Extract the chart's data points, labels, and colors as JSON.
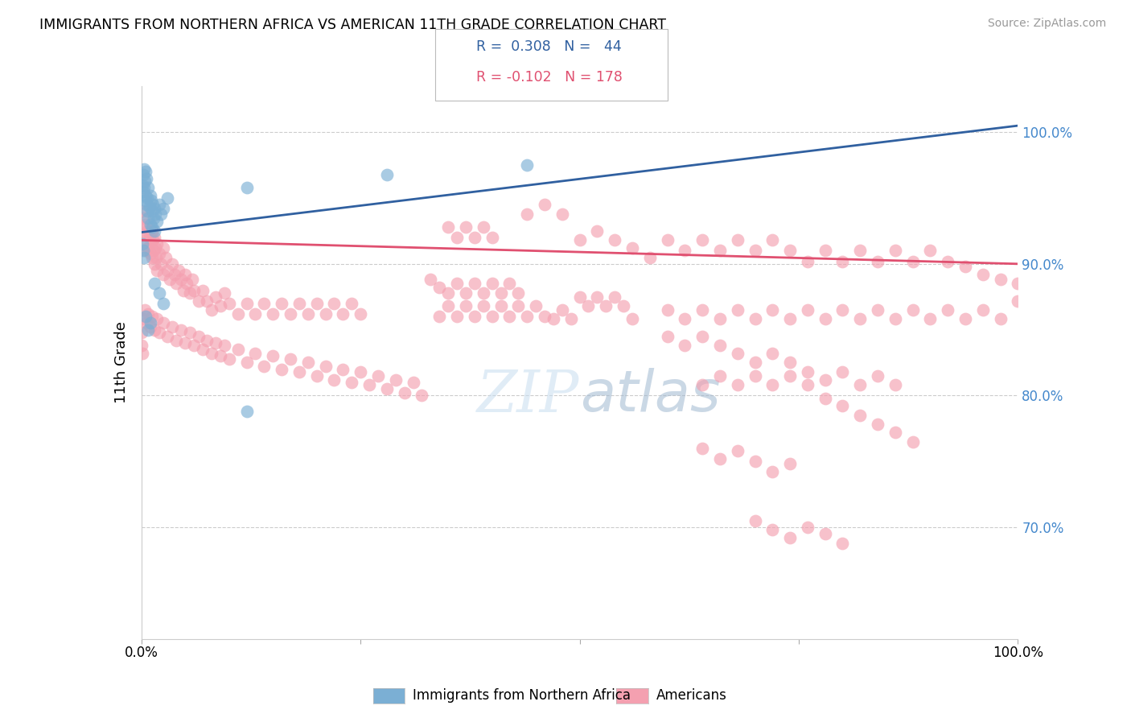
{
  "title": "IMMIGRANTS FROM NORTHERN AFRICA VS AMERICAN 11TH GRADE CORRELATION CHART",
  "source": "Source: ZipAtlas.com",
  "ylabel": "11th Grade",
  "xlim": [
    0.0,
    1.0
  ],
  "ylim": [
    0.615,
    1.035
  ],
  "yticks": [
    0.7,
    0.8,
    0.9,
    1.0
  ],
  "ytick_labels": [
    "70.0%",
    "80.0%",
    "90.0%",
    "100.0%"
  ],
  "xticks": [
    0.0,
    0.25,
    0.5,
    0.75,
    1.0
  ],
  "blue_R": 0.308,
  "blue_N": 44,
  "pink_R": -0.102,
  "pink_N": 178,
  "blue_color": "#7bafd4",
  "pink_color": "#f4a0b0",
  "blue_line_color": "#3060a0",
  "pink_line_color": "#e05070",
  "legend_label_blue": "Immigrants from Northern Africa",
  "legend_label_pink": "Americans",
  "watermark": "ZIPatlas",
  "blue_points": [
    [
      0.001,
      0.96
    ],
    [
      0.002,
      0.955
    ],
    [
      0.002,
      0.968
    ],
    [
      0.003,
      0.972
    ],
    [
      0.003,
      0.958
    ],
    [
      0.004,
      0.963
    ],
    [
      0.004,
      0.948
    ],
    [
      0.005,
      0.97
    ],
    [
      0.005,
      0.952
    ],
    [
      0.006,
      0.965
    ],
    [
      0.006,
      0.945
    ],
    [
      0.007,
      0.95
    ],
    [
      0.007,
      0.94
    ],
    [
      0.008,
      0.958
    ],
    [
      0.008,
      0.935
    ],
    [
      0.009,
      0.943
    ],
    [
      0.01,
      0.952
    ],
    [
      0.01,
      0.93
    ],
    [
      0.011,
      0.948
    ],
    [
      0.012,
      0.94
    ],
    [
      0.012,
      0.928
    ],
    [
      0.013,
      0.945
    ],
    [
      0.014,
      0.935
    ],
    [
      0.015,
      0.942
    ],
    [
      0.015,
      0.925
    ],
    [
      0.016,
      0.938
    ],
    [
      0.018,
      0.932
    ],
    [
      0.02,
      0.945
    ],
    [
      0.022,
      0.938
    ],
    [
      0.025,
      0.942
    ],
    [
      0.03,
      0.95
    ],
    [
      0.001,
      0.915
    ],
    [
      0.002,
      0.91
    ],
    [
      0.003,
      0.905
    ],
    [
      0.015,
      0.885
    ],
    [
      0.02,
      0.878
    ],
    [
      0.025,
      0.87
    ],
    [
      0.005,
      0.86
    ],
    [
      0.01,
      0.855
    ],
    [
      0.008,
      0.85
    ],
    [
      0.12,
      0.958
    ],
    [
      0.28,
      0.968
    ],
    [
      0.44,
      0.975
    ],
    [
      0.12,
      0.788
    ]
  ],
  "pink_points": [
    [
      0.001,
      0.94
    ],
    [
      0.002,
      0.928
    ],
    [
      0.003,
      0.935
    ],
    [
      0.004,
      0.922
    ],
    [
      0.005,
      0.93
    ],
    [
      0.005,
      0.91
    ],
    [
      0.006,
      0.918
    ],
    [
      0.007,
      0.925
    ],
    [
      0.008,
      0.912
    ],
    [
      0.009,
      0.92
    ],
    [
      0.01,
      0.908
    ],
    [
      0.011,
      0.915
    ],
    [
      0.012,
      0.905
    ],
    [
      0.012,
      0.925
    ],
    [
      0.013,
      0.918
    ],
    [
      0.014,
      0.91
    ],
    [
      0.015,
      0.9
    ],
    [
      0.015,
      0.92
    ],
    [
      0.016,
      0.912
    ],
    [
      0.017,
      0.905
    ],
    [
      0.018,
      0.895
    ],
    [
      0.018,
      0.915
    ],
    [
      0.02,
      0.908
    ],
    [
      0.022,
      0.9
    ],
    [
      0.025,
      0.892
    ],
    [
      0.025,
      0.912
    ],
    [
      0.028,
      0.905
    ],
    [
      0.03,
      0.895
    ],
    [
      0.032,
      0.888
    ],
    [
      0.035,
      0.9
    ],
    [
      0.038,
      0.892
    ],
    [
      0.04,
      0.885
    ],
    [
      0.042,
      0.895
    ],
    [
      0.045,
      0.888
    ],
    [
      0.048,
      0.88
    ],
    [
      0.05,
      0.892
    ],
    [
      0.052,
      0.885
    ],
    [
      0.055,
      0.878
    ],
    [
      0.058,
      0.888
    ],
    [
      0.06,
      0.88
    ],
    [
      0.002,
      0.858
    ],
    [
      0.004,
      0.865
    ],
    [
      0.006,
      0.855
    ],
    [
      0.008,
      0.862
    ],
    [
      0.01,
      0.852
    ],
    [
      0.012,
      0.86
    ],
    [
      0.015,
      0.85
    ],
    [
      0.018,
      0.858
    ],
    [
      0.02,
      0.848
    ],
    [
      0.025,
      0.855
    ],
    [
      0.03,
      0.845
    ],
    [
      0.035,
      0.852
    ],
    [
      0.04,
      0.842
    ],
    [
      0.045,
      0.85
    ],
    [
      0.05,
      0.84
    ],
    [
      0.055,
      0.848
    ],
    [
      0.06,
      0.838
    ],
    [
      0.065,
      0.845
    ],
    [
      0.07,
      0.835
    ],
    [
      0.075,
      0.842
    ],
    [
      0.08,
      0.832
    ],
    [
      0.085,
      0.84
    ],
    [
      0.09,
      0.83
    ],
    [
      0.095,
      0.838
    ],
    [
      0.1,
      0.828
    ],
    [
      0.11,
      0.835
    ],
    [
      0.12,
      0.825
    ],
    [
      0.13,
      0.832
    ],
    [
      0.14,
      0.822
    ],
    [
      0.15,
      0.83
    ],
    [
      0.16,
      0.82
    ],
    [
      0.17,
      0.828
    ],
    [
      0.18,
      0.818
    ],
    [
      0.19,
      0.825
    ],
    [
      0.2,
      0.815
    ],
    [
      0.21,
      0.822
    ],
    [
      0.22,
      0.812
    ],
    [
      0.23,
      0.82
    ],
    [
      0.24,
      0.81
    ],
    [
      0.25,
      0.818
    ],
    [
      0.26,
      0.808
    ],
    [
      0.27,
      0.815
    ],
    [
      0.28,
      0.805
    ],
    [
      0.29,
      0.812
    ],
    [
      0.3,
      0.802
    ],
    [
      0.31,
      0.81
    ],
    [
      0.32,
      0.8
    ],
    [
      0.065,
      0.872
    ],
    [
      0.07,
      0.88
    ],
    [
      0.075,
      0.872
    ],
    [
      0.08,
      0.865
    ],
    [
      0.085,
      0.875
    ],
    [
      0.09,
      0.868
    ],
    [
      0.095,
      0.878
    ],
    [
      0.1,
      0.87
    ],
    [
      0.11,
      0.862
    ],
    [
      0.12,
      0.87
    ],
    [
      0.13,
      0.862
    ],
    [
      0.14,
      0.87
    ],
    [
      0.15,
      0.862
    ],
    [
      0.16,
      0.87
    ],
    [
      0.17,
      0.862
    ],
    [
      0.18,
      0.87
    ],
    [
      0.19,
      0.862
    ],
    [
      0.2,
      0.87
    ],
    [
      0.21,
      0.862
    ],
    [
      0.22,
      0.87
    ],
    [
      0.23,
      0.862
    ],
    [
      0.24,
      0.87
    ],
    [
      0.25,
      0.862
    ],
    [
      0.33,
      0.888
    ],
    [
      0.34,
      0.882
    ],
    [
      0.35,
      0.878
    ],
    [
      0.36,
      0.885
    ],
    [
      0.37,
      0.878
    ],
    [
      0.38,
      0.885
    ],
    [
      0.39,
      0.878
    ],
    [
      0.4,
      0.885
    ],
    [
      0.41,
      0.878
    ],
    [
      0.42,
      0.885
    ],
    [
      0.43,
      0.878
    ],
    [
      0.34,
      0.86
    ],
    [
      0.35,
      0.868
    ],
    [
      0.36,
      0.86
    ],
    [
      0.37,
      0.868
    ],
    [
      0.38,
      0.86
    ],
    [
      0.39,
      0.868
    ],
    [
      0.4,
      0.86
    ],
    [
      0.41,
      0.868
    ],
    [
      0.42,
      0.86
    ],
    [
      0.43,
      0.868
    ],
    [
      0.44,
      0.86
    ],
    [
      0.45,
      0.868
    ],
    [
      0.46,
      0.86
    ],
    [
      0.5,
      0.875
    ],
    [
      0.51,
      0.868
    ],
    [
      0.52,
      0.875
    ],
    [
      0.53,
      0.868
    ],
    [
      0.54,
      0.875
    ],
    [
      0.55,
      0.868
    ],
    [
      0.56,
      0.858
    ],
    [
      0.47,
      0.858
    ],
    [
      0.48,
      0.865
    ],
    [
      0.49,
      0.858
    ],
    [
      0.6,
      0.865
    ],
    [
      0.62,
      0.858
    ],
    [
      0.64,
      0.865
    ],
    [
      0.66,
      0.858
    ],
    [
      0.68,
      0.865
    ],
    [
      0.7,
      0.858
    ],
    [
      0.72,
      0.865
    ],
    [
      0.74,
      0.858
    ],
    [
      0.76,
      0.865
    ],
    [
      0.78,
      0.858
    ],
    [
      0.8,
      0.865
    ],
    [
      0.82,
      0.858
    ],
    [
      0.84,
      0.865
    ],
    [
      0.86,
      0.858
    ],
    [
      0.88,
      0.865
    ],
    [
      0.9,
      0.858
    ],
    [
      0.92,
      0.865
    ],
    [
      0.94,
      0.858
    ],
    [
      0.96,
      0.865
    ],
    [
      0.98,
      0.858
    ],
    [
      1.0,
      0.872
    ],
    [
      0.35,
      0.928
    ],
    [
      0.36,
      0.92
    ],
    [
      0.37,
      0.928
    ],
    [
      0.38,
      0.92
    ],
    [
      0.39,
      0.928
    ],
    [
      0.4,
      0.92
    ],
    [
      0.44,
      0.938
    ],
    [
      0.46,
      0.945
    ],
    [
      0.48,
      0.938
    ],
    [
      0.5,
      0.918
    ],
    [
      0.52,
      0.925
    ],
    [
      0.54,
      0.918
    ],
    [
      0.56,
      0.912
    ],
    [
      0.58,
      0.905
    ],
    [
      0.6,
      0.918
    ],
    [
      0.62,
      0.91
    ],
    [
      0.64,
      0.918
    ],
    [
      0.66,
      0.91
    ],
    [
      0.68,
      0.918
    ],
    [
      0.7,
      0.91
    ],
    [
      0.72,
      0.918
    ],
    [
      0.74,
      0.91
    ],
    [
      0.76,
      0.902
    ],
    [
      0.78,
      0.91
    ],
    [
      0.8,
      0.902
    ],
    [
      0.82,
      0.91
    ],
    [
      0.84,
      0.902
    ],
    [
      0.86,
      0.91
    ],
    [
      0.88,
      0.902
    ],
    [
      0.9,
      0.91
    ],
    [
      0.92,
      0.902
    ],
    [
      0.94,
      0.898
    ],
    [
      0.96,
      0.892
    ],
    [
      0.98,
      0.888
    ],
    [
      1.0,
      0.885
    ],
    [
      0.6,
      0.845
    ],
    [
      0.62,
      0.838
    ],
    [
      0.64,
      0.845
    ],
    [
      0.66,
      0.838
    ],
    [
      0.68,
      0.832
    ],
    [
      0.7,
      0.825
    ],
    [
      0.72,
      0.832
    ],
    [
      0.74,
      0.825
    ],
    [
      0.76,
      0.818
    ],
    [
      0.78,
      0.812
    ],
    [
      0.8,
      0.818
    ],
    [
      0.64,
      0.808
    ],
    [
      0.66,
      0.815
    ],
    [
      0.68,
      0.808
    ],
    [
      0.7,
      0.815
    ],
    [
      0.72,
      0.808
    ],
    [
      0.74,
      0.815
    ],
    [
      0.76,
      0.808
    ],
    [
      0.82,
      0.808
    ],
    [
      0.84,
      0.815
    ],
    [
      0.86,
      0.808
    ],
    [
      0.78,
      0.798
    ],
    [
      0.8,
      0.792
    ],
    [
      0.82,
      0.785
    ],
    [
      0.84,
      0.778
    ],
    [
      0.86,
      0.772
    ],
    [
      0.88,
      0.765
    ],
    [
      0.64,
      0.76
    ],
    [
      0.66,
      0.752
    ],
    [
      0.68,
      0.758
    ],
    [
      0.7,
      0.75
    ],
    [
      0.72,
      0.742
    ],
    [
      0.74,
      0.748
    ],
    [
      0.7,
      0.705
    ],
    [
      0.72,
      0.698
    ],
    [
      0.74,
      0.692
    ],
    [
      0.76,
      0.7
    ],
    [
      0.78,
      0.695
    ],
    [
      0.8,
      0.688
    ],
    [
      0.0,
      0.848
    ],
    [
      0.0,
      0.838
    ],
    [
      0.001,
      0.832
    ]
  ]
}
